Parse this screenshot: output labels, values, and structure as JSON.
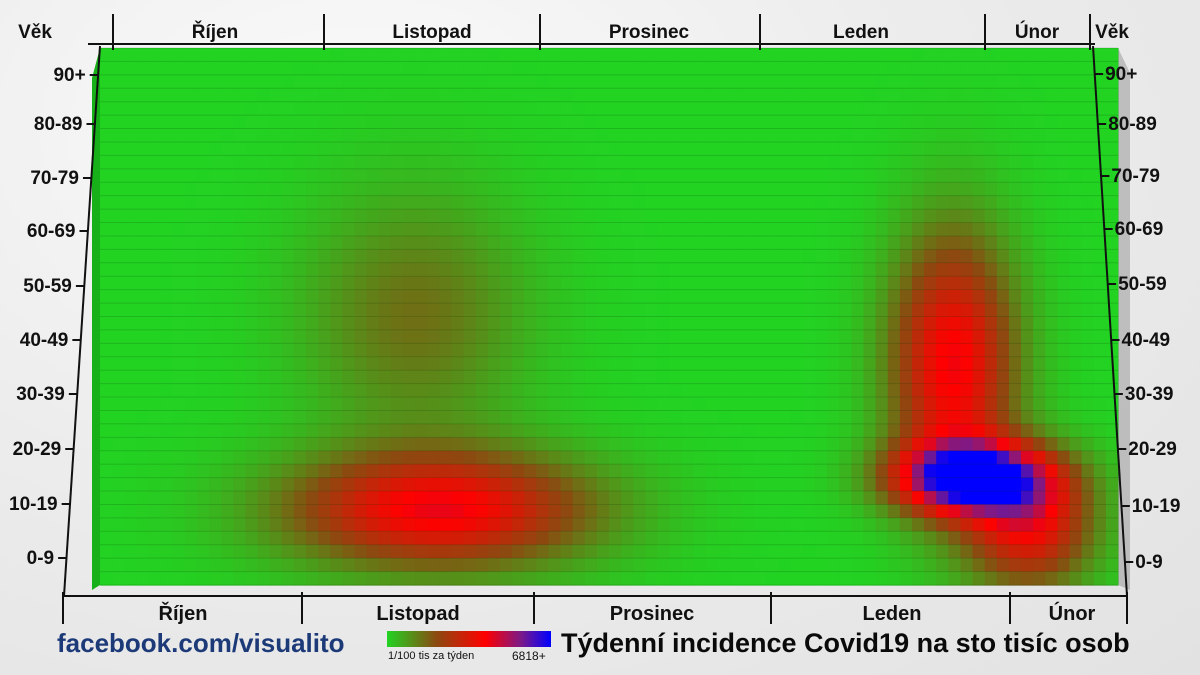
{
  "chart_data": {
    "type": "heatmap",
    "title": "Týdenní incidence Covid19 na sto tisíc osob",
    "y_axis_label": "Věk",
    "age_groups": [
      "0-9",
      "10-19",
      "20-29",
      "30-39",
      "40-49",
      "50-59",
      "60-69",
      "70-79",
      "80-89",
      "90+"
    ],
    "months": [
      "Říjen",
      "Listopad",
      "Prosinec",
      "Leden",
      "Únor"
    ],
    "color_scale": {
      "min_label": "1/100 tis za týden",
      "max_label": "6818+",
      "colors": [
        "#22d322",
        "#8b4a10",
        "#ff0000",
        "#7a1a8a",
        "#0000ff"
      ]
    },
    "weeks": 21,
    "peaks": [
      {
        "center_week": 7.0,
        "center_age_index": 0.9,
        "spread_week": 2.2,
        "spread_age": 0.75,
        "intensity": 0.62
      },
      {
        "center_week": 6.5,
        "center_age_index": 4.5,
        "spread_week": 1.6,
        "spread_age": 1.6,
        "intensity": 0.22
      },
      {
        "center_week": 18.0,
        "center_age_index": 1.5,
        "spread_week": 1.1,
        "spread_age": 0.45,
        "intensity": 0.98
      },
      {
        "center_week": 17.6,
        "center_age_index": 3.6,
        "spread_week": 0.9,
        "spread_age": 1.7,
        "intensity": 0.62
      },
      {
        "center_week": 19.2,
        "center_age_index": 0.6,
        "spread_week": 0.9,
        "spread_age": 0.8,
        "intensity": 0.55
      }
    ]
  },
  "footer": {
    "link": "facebook.com/visualito",
    "legend_min": "1/100 tis za týden",
    "legend_max": "6818+",
    "title": "Týdenní incidence Covid19 na sto tisíc osob"
  }
}
